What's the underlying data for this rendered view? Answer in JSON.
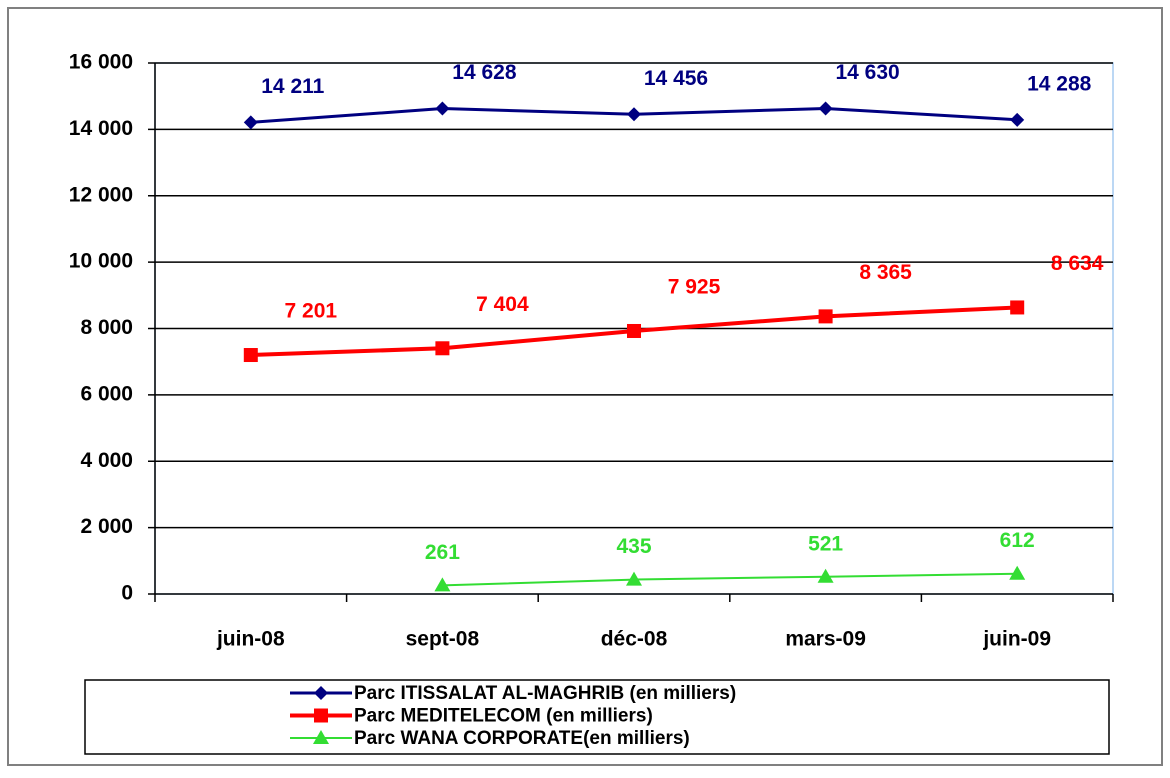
{
  "chart_data": {
    "type": "line",
    "categories": [
      "juin-08",
      "sept-08",
      "déc-08",
      "mars-09",
      "juin-09"
    ],
    "series": [
      {
        "name": "Parc ITISSALAT AL-MAGHRIB (en milliers)",
        "color": "#000080",
        "marker": "diamond",
        "values": [
          14211,
          14628,
          14456,
          14630,
          14288
        ],
        "value_labels": [
          "14 211",
          "14 628",
          "14 456",
          "14 630",
          "14 288"
        ]
      },
      {
        "name": "Parc MEDITELECOM (en milliers)",
        "color": "#ff0000",
        "marker": "square",
        "values": [
          7201,
          7404,
          7925,
          8365,
          8634
        ],
        "value_labels": [
          "7 201",
          "7 404",
          "7 925",
          "8 365",
          "8 634"
        ]
      },
      {
        "name": "Parc WANA CORPORATE(en milliers)",
        "color": "#33dd33",
        "marker": "triangle",
        "values": [
          null,
          261,
          435,
          521,
          612
        ],
        "value_labels": [
          null,
          "261",
          "435",
          "521",
          "612"
        ]
      }
    ],
    "ylim": [
      0,
      16000
    ],
    "yticks": [
      0,
      {
        "value": 2000,
        "label": "2 000"
      },
      {
        "value": 4000,
        "label": "4 000"
      },
      {
        "value": 6000,
        "label": "6 000"
      },
      {
        "value": 8000,
        "label": "8 000"
      },
      {
        "value": 10000,
        "label": "10 000"
      },
      {
        "value": 12000,
        "label": "12 000"
      },
      {
        "value": 14000,
        "label": "14 000"
      },
      {
        "value": 16000,
        "label": "16 000"
      }
    ],
    "grid": true,
    "legend": "bottom"
  }
}
